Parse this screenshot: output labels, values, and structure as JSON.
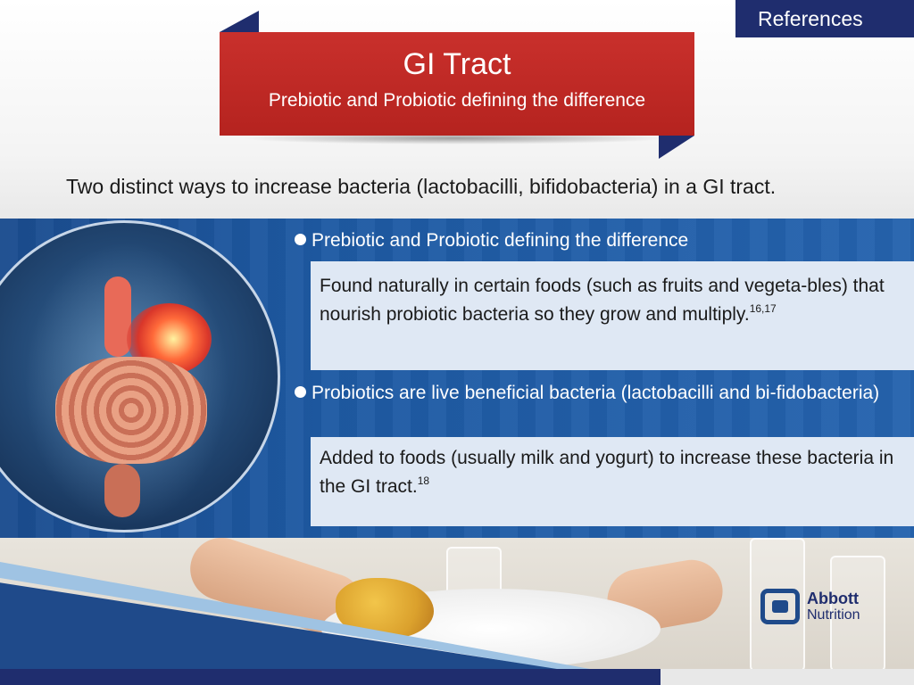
{
  "references": {
    "label": "References"
  },
  "banner": {
    "title": "GI Tract",
    "subtitle": "Prebiotic and Probiotic defining the difference"
  },
  "intro": "Two distinct ways to increase bacteria (lactobacilli, bifidobacteria) in a GI tract.",
  "sections": [
    {
      "heading": "Prebiotic and Probiotic defining the difference",
      "body": "Found naturally in certain foods (such as fruits and vegeta-bles) that nourish probiotic bacteria so they grow and multiply.",
      "sup": "16,17"
    },
    {
      "heading": "Probiotics are live beneficial bacteria (lactobacilli and bi-fidobacteria)",
      "body": "Added to foods (usually milk and yogurt) to increase these bacteria in the GI tract.",
      "sup": "18"
    }
  ],
  "logo": {
    "line1": "Abbott",
    "line2": "Nutrition"
  },
  "colors": {
    "banner_red": "#c9302c",
    "navy": "#1f2d6e",
    "panel_blue": "#1e5aa3",
    "card_bg": "#dfe8f4"
  },
  "icons": {
    "gi_illustration": "digestive-system-illustration",
    "logo": "abbott-logo-icon"
  }
}
